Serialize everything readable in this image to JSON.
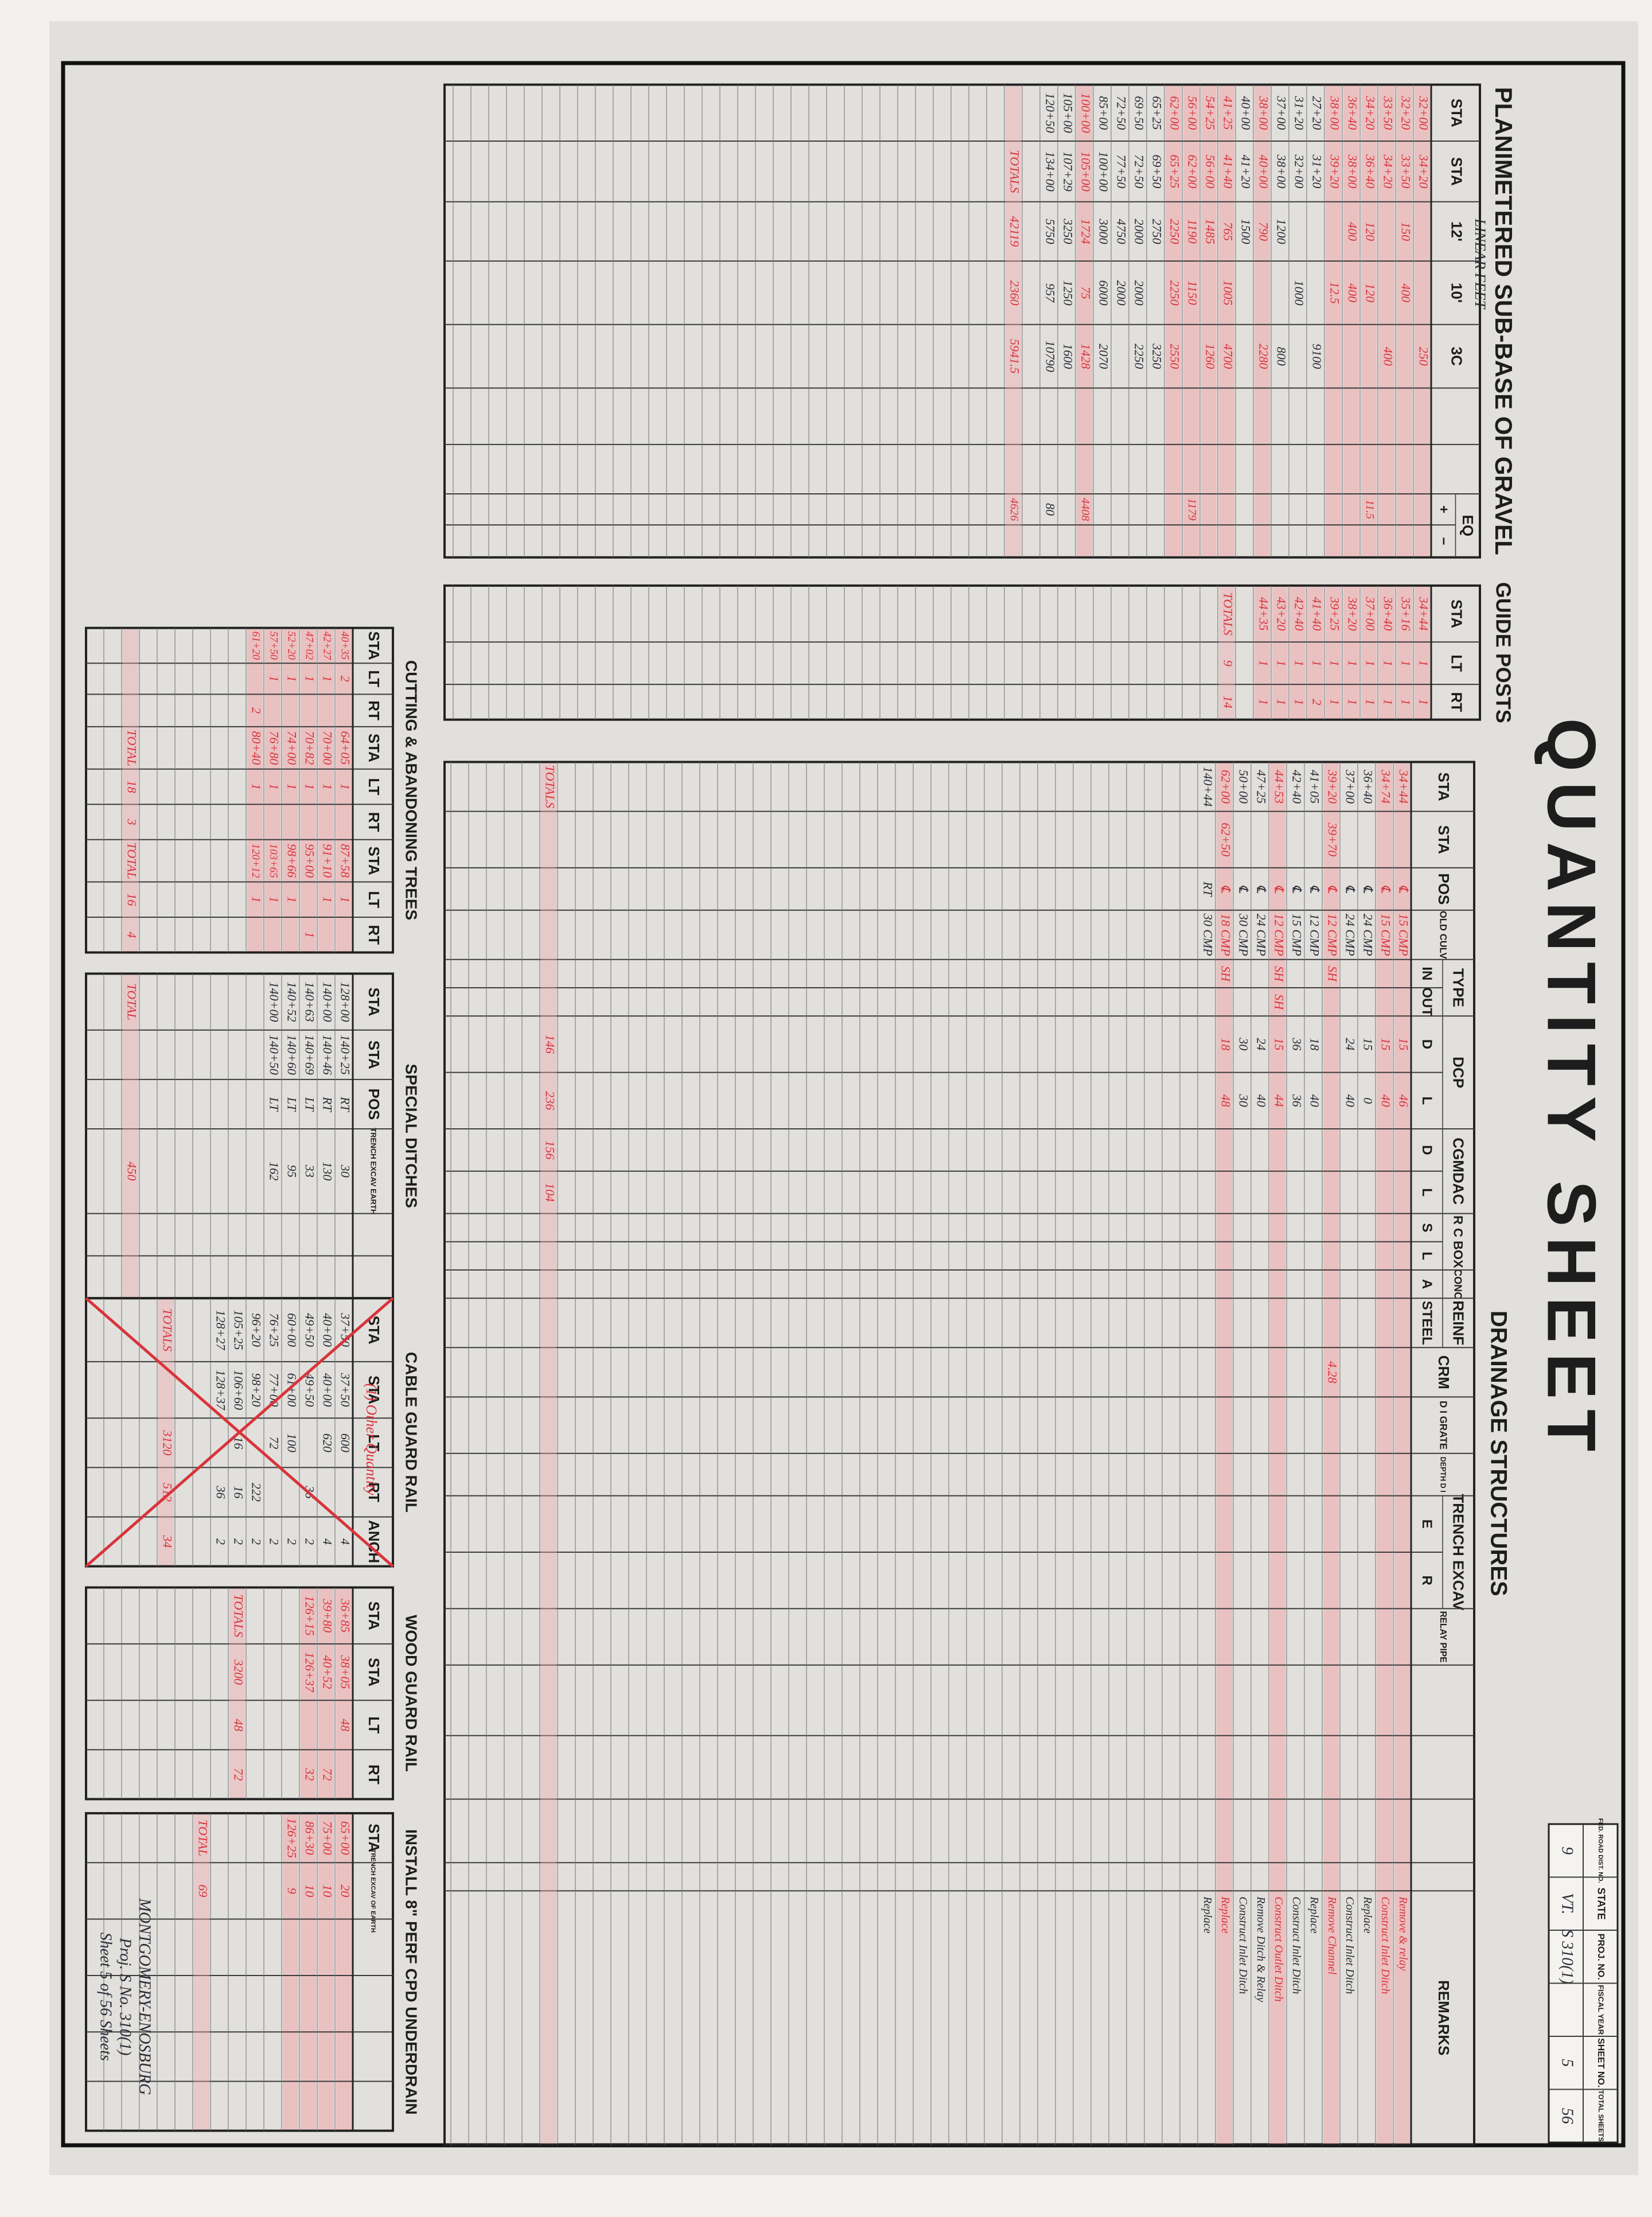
{
  "title": "QUANTITY SHEET",
  "title_block": [
    {
      "label": "FED. ROAD DIST. NO.",
      "value": "9"
    },
    {
      "label": "STATE",
      "value": "VT."
    },
    {
      "label": "PROJ. NO.",
      "value": "S 310(1)"
    },
    {
      "label": "FISCAL YEAR"
    },
    {
      "label": "SHEET NO.",
      "value": "5"
    },
    {
      "label": "TOTAL SHEETS",
      "value": "56"
    }
  ],
  "sub_base": {
    "title": "PLANIMETERED SUB-BASE OF GRAVEL",
    "subtitle": "LINEAR FEET",
    "headers": [
      "STA",
      "STA",
      "12'",
      "10'",
      "3C",
      null,
      null,
      {
        "label": "EQ",
        "sub": [
          "+",
          "−"
        ]
      }
    ],
    "rows": [
      {
        "cells": [
          "32+00",
          "34+20",
          null,
          null,
          "250"
        ]
      },
      {
        "cells": [
          "32+20",
          "33+50",
          "150",
          "400",
          null
        ]
      },
      {
        "cells": [
          "33+50",
          "34+20",
          null,
          null,
          "400"
        ]
      },
      {
        "cells": [
          "34+20",
          "36+40",
          "120",
          "120",
          null,
          null,
          null,
          "11.5"
        ]
      },
      {
        "cells": [
          "36+40",
          "38+00",
          "400",
          "400",
          null
        ]
      },
      {
        "cells": [
          "38+00",
          "39+20",
          null,
          "12.5",
          null
        ]
      },
      {
        "cells": [
          "27+20",
          "31+20",
          null,
          null,
          "9100"
        ]
      },
      {
        "cells": [
          "31+20",
          "32+00",
          null,
          "1000",
          null
        ]
      },
      {
        "cells": [
          "37+00",
          "38+00",
          "1200",
          null,
          "800"
        ]
      },
      {
        "cells": [
          "38+00",
          "40+00",
          "790",
          null,
          "2280"
        ]
      },
      {
        "cells": [
          "40+00",
          "41+20",
          "1500",
          null,
          null
        ]
      },
      {
        "cells": [
          "41+25",
          "41+40",
          "765",
          "1005",
          "4700"
        ]
      },
      {
        "cells": [
          "54+25",
          "56+00",
          "1485",
          null,
          "1260"
        ]
      },
      {
        "cells": [
          "56+00",
          "62+00",
          "1190",
          "1150",
          null,
          null,
          null,
          "1179"
        ]
      },
      {
        "cells": [
          "62+00",
          "65+25",
          "2250",
          "2250",
          "2550"
        ]
      },
      {
        "cells": [
          "65+25",
          "69+50",
          "2750",
          null,
          "3250"
        ]
      },
      {
        "cells": [
          "69+50",
          "72+50",
          "2000",
          "2000",
          "2250"
        ]
      },
      {
        "cells": [
          "72+50",
          "77+50",
          "4750",
          "2000",
          null
        ]
      },
      {
        "cells": [
          "85+00",
          "100+00",
          "3000",
          "6000",
          "2070"
        ]
      },
      {
        "cells": [
          "100+00",
          "105+00",
          "1724",
          "75",
          "1428",
          null,
          null,
          "4408"
        ]
      },
      {
        "cells": [
          "105+00",
          "107+29",
          "3250",
          "1250",
          "1600"
        ]
      },
      {
        "cells": [
          "120+50",
          "134+00",
          "5750",
          "957",
          "10790",
          null,
          null,
          "80"
        ]
      }
    ],
    "red_ink_rows": [
      0,
      1,
      2,
      3,
      4,
      5,
      9,
      11,
      12,
      13,
      14,
      19
    ],
    "totals": [
      null,
      "TOTALS",
      "42119",
      "2360",
      "5941.5",
      null,
      null,
      "4626"
    ]
  },
  "guide_posts": {
    "title": "GUIDE POSTS",
    "headers": [
      "STA",
      "LT",
      "RT"
    ],
    "rows": [
      {
        "cells": [
          "34+44",
          "1",
          "1"
        ]
      },
      {
        "cells": [
          "35+16",
          "1",
          "1"
        ]
      },
      {
        "cells": [
          "36+40",
          "1",
          "1"
        ]
      },
      {
        "cells": [
          "37+00",
          "1",
          "1"
        ]
      },
      {
        "cells": [
          "38+20",
          "1",
          "1"
        ]
      },
      {
        "cells": [
          "39+25",
          "1",
          "1"
        ]
      },
      {
        "cells": [
          "41+40",
          "1",
          "2"
        ]
      },
      {
        "cells": [
          "42+40",
          "1",
          "1"
        ]
      },
      {
        "cells": [
          "43+20",
          "1",
          "1"
        ]
      },
      {
        "cells": [
          "44+35",
          "1",
          "1"
        ]
      }
    ],
    "red_ink_rows": [
      0,
      1,
      2,
      3,
      4,
      5,
      6,
      7,
      8,
      9
    ],
    "totals": [
      "TOTALS",
      "9",
      "14"
    ]
  },
  "drainage": {
    "title": "DRAINAGE STRUCTURES",
    "headers": [
      "STA",
      "STA",
      "POS",
      "OLD CULV",
      {
        "label": "TYPE",
        "sub": [
          "IN",
          "OUT"
        ]
      },
      {
        "label": "DCP",
        "sub": [
          "D",
          "L"
        ]
      },
      {
        "label": "CGMDAC",
        "sub": [
          "D",
          "L"
        ]
      },
      {
        "label": "R C BOX",
        "sub": [
          "S",
          "L"
        ]
      },
      {
        "label": "CONC",
        "sub": [
          "A"
        ]
      },
      {
        "label": "REINF",
        "sub": [
          "STEEL"
        ]
      },
      "CRM",
      "D I GRATE",
      "DEPTH D I",
      {
        "label": "TRENCH EXCAV",
        "sub": [
          "E",
          "R"
        ]
      },
      "RELAY PIPE",
      null,
      null,
      null,
      null,
      "REMARKS"
    ],
    "rows": [
      {
        "cells": [
          "34+44",
          null,
          "℄",
          "15 CMP",
          null,
          null,
          "15",
          "46"
        ],
        "remarks": "Remove & relay"
      },
      {
        "cells": [
          "34+74",
          null,
          "℄",
          "15 CMP",
          null,
          null,
          "15",
          "40"
        ],
        "remarks": "Construct Inlet Ditch"
      },
      {
        "cells": [
          "36+40",
          null,
          "℄",
          "24 CMP",
          null,
          null,
          "15",
          "0"
        ],
        "remarks": "Replace"
      },
      {
        "cells": [
          "37+00",
          null,
          "℄",
          "24 CMP",
          null,
          null,
          "24",
          "40"
        ],
        "remarks": "Construct Inlet Ditch"
      },
      {
        "cells": [
          "39+20",
          "39+70",
          "℄",
          "12 CMP",
          "SH",
          null,
          null,
          null,
          null,
          null,
          null,
          null,
          null,
          null,
          "4.28"
        ],
        "remarks": "Remove Channel"
      },
      {
        "cells": [
          "41+05",
          null,
          "℄",
          "12 CMP",
          null,
          null,
          "18",
          "40"
        ],
        "remarks": "Replace"
      },
      {
        "cells": [
          "42+40",
          null,
          "℄",
          "15 CMP",
          null,
          null,
          "36",
          "36"
        ],
        "remarks": "Construct Inlet Ditch"
      },
      {
        "cells": [
          "44+53",
          null,
          "℄",
          "12 CMP",
          "SH",
          "SH",
          "15",
          "44"
        ],
        "remarks": "Construct Outlet Ditch"
      },
      {
        "cells": [
          "47+25",
          null,
          "℄",
          "24 CMP",
          null,
          null,
          "24",
          "40"
        ],
        "remarks": "Remove Ditch & Relay"
      },
      {
        "cells": [
          "50+00",
          null,
          "℄",
          "30 CMP",
          null,
          null,
          "30",
          "30"
        ],
        "remarks": "Construct Inlet Ditch"
      },
      {
        "cells": [
          "62+00",
          "62+50",
          "℄",
          "18 CMP",
          "SH",
          null,
          "18",
          "48"
        ],
        "remarks": "Replace"
      },
      {
        "cells": [
          "140+44",
          null,
          "RT",
          "30 CMP"
        ],
        "remarks": "Replace"
      }
    ],
    "red_ink_rows": [
      0,
      1,
      4,
      7,
      10
    ],
    "totals": [
      "TOTALS",
      null,
      null,
      null,
      null,
      null,
      "146",
      "236",
      "156",
      "104"
    ]
  },
  "trees": {
    "title": "CUTTING & ABANDONING TREES",
    "headers": [
      "STA",
      "LT",
      "RT",
      "STA",
      "LT",
      "RT",
      "STA",
      "LT",
      "RT"
    ],
    "rows": [
      {
        "cells": [
          "40+35",
          "2",
          null,
          "64+05",
          "1",
          null,
          "87+58",
          "1",
          null
        ]
      },
      {
        "cells": [
          "42+27",
          "1",
          null,
          "70+00",
          "1",
          null,
          "91+10",
          "1",
          null
        ]
      },
      {
        "cells": [
          "47+02",
          "1",
          null,
          "70+82",
          "1",
          null,
          "95+00",
          null,
          "1"
        ]
      },
      {
        "cells": [
          "52+20",
          "1",
          null,
          "74+00",
          "1",
          null,
          "98+66",
          "1",
          null
        ]
      },
      {
        "cells": [
          "57+50",
          "1",
          null,
          "76+80",
          "1",
          null,
          "103+65",
          "1",
          null
        ]
      },
      {
        "cells": [
          "61+20",
          null,
          "2",
          "80+40",
          "1",
          null,
          "120+12",
          "1",
          null
        ]
      }
    ],
    "red_ink_rows": [
      0,
      1,
      2,
      3,
      4,
      5
    ],
    "totals": [
      null,
      null,
      null,
      "TOTAL",
      "18",
      "3",
      "TOTAL",
      "16",
      "4"
    ]
  },
  "ditches": {
    "title": "SPECIAL DITCHES",
    "headers": [
      "STA",
      "STA",
      "POS",
      "TRENCH EXCAV EARTH"
    ],
    "rows": [
      {
        "cells": [
          "128+00",
          "140+25",
          "RT",
          "30"
        ]
      },
      {
        "cells": [
          "140+00",
          "140+46",
          "RT",
          "130"
        ]
      },
      {
        "cells": [
          "140+63",
          "140+69",
          "LT",
          "33"
        ]
      },
      {
        "cells": [
          "140+52",
          "140+60",
          "LT",
          "95"
        ]
      },
      {
        "cells": [
          "140+00",
          "140+50",
          "LT",
          "162"
        ]
      }
    ],
    "red_ink_rows": [],
    "totals": [
      "TOTAL",
      null,
      null,
      "450"
    ]
  },
  "cable": {
    "title": "CABLE GUARD RAIL",
    "note": "(1) Other Quantity",
    "headers": [
      "STA",
      "STA",
      "LT",
      "RT",
      "ANCH"
    ],
    "rows": [
      {
        "cells": [
          "37+50",
          "37+50",
          "600",
          null,
          "4"
        ]
      },
      {
        "cells": [
          "40+00",
          "40+00",
          "620",
          null,
          "4"
        ]
      },
      {
        "cells": [
          "49+50",
          "49+50",
          null,
          "36",
          "2"
        ]
      },
      {
        "cells": [
          "60+00",
          "61+00",
          "100",
          null,
          "2"
        ]
      },
      {
        "cells": [
          "76+25",
          "77+00",
          "72",
          null,
          "2"
        ]
      },
      {
        "cells": [
          "96+20",
          "98+20",
          null,
          "222",
          "2"
        ]
      },
      {
        "cells": [
          "105+25",
          "106+60",
          "16",
          "16",
          "2"
        ]
      },
      {
        "cells": [
          "128+27",
          "128+37",
          null,
          "36",
          "2"
        ]
      }
    ],
    "red_ink_rows": [],
    "totals": [
      "TOTALS",
      null,
      "3120",
      "512",
      "34"
    ]
  },
  "wood": {
    "title": "WOOD GUARD RAIL",
    "headers": [
      "STA",
      "STA",
      "LT",
      "RT"
    ],
    "rows": [
      {
        "cells": [
          "36+85",
          "38+05",
          "48",
          null
        ]
      },
      {
        "cells": [
          "39+80",
          "40+52",
          null,
          "72"
        ]
      },
      {
        "cells": [
          "126+15",
          "126+37",
          null,
          "32"
        ]
      }
    ],
    "red_ink_rows": [
      0,
      1,
      2
    ],
    "totals": [
      "TOTALS",
      "3200",
      "48",
      "72"
    ]
  },
  "underdrain": {
    "title": "INSTALL 8\" PERF CPD UNDERDRAIN",
    "headers": [
      "STA",
      "TRENCH EXCAV OF EARTH"
    ],
    "rows": [
      {
        "cells": [
          "65+00",
          "20"
        ]
      },
      {
        "cells": [
          "75+00",
          "10"
        ]
      },
      {
        "cells": [
          "86+30",
          "10"
        ]
      },
      {
        "cells": [
          "126+25",
          "9"
        ]
      }
    ],
    "red_ink_rows": [
      0,
      1,
      2,
      3
    ],
    "totals": [
      "TOTAL",
      "69"
    ],
    "note": [
      "MONTGOMERY-ENOSBURG",
      "Proj. S No. 310(1)",
      "Sheet 5 of 56 Sheets"
    ]
  }
}
